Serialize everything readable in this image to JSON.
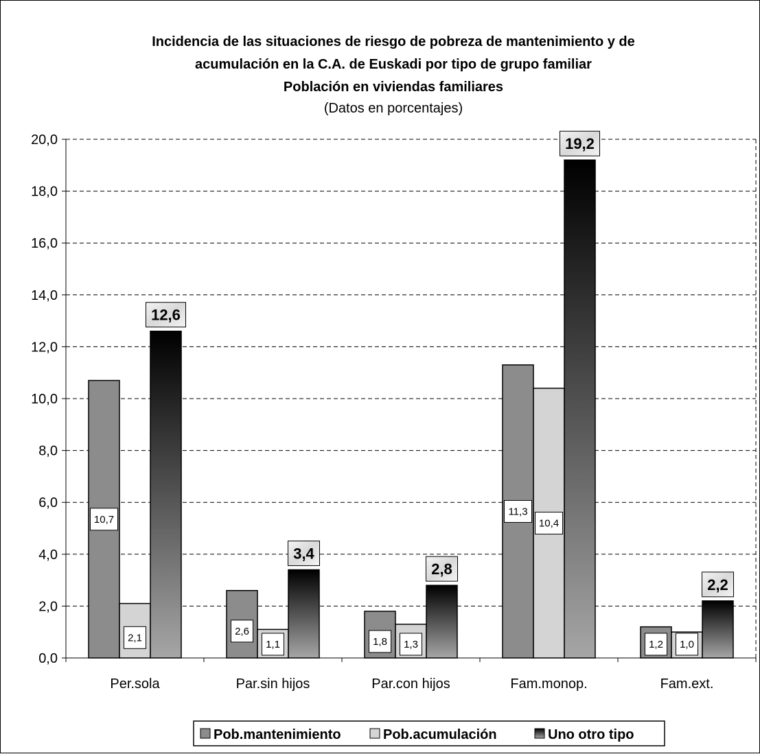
{
  "chart_data": {
    "type": "bar",
    "title_lines": [
      "Incidencia de las situaciones de riesgo de pobreza de mantenimiento y de",
      "acumulación en la C.A. de Euskadi por tipo de grupo familiar",
      "Población en viviendas familiares"
    ],
    "subtitle": "(Datos en porcentajes)",
    "categories": [
      "Per.sola",
      "Par.sin hijos",
      "Par.con hijos",
      "Fam.monop.",
      "Fam.ext."
    ],
    "series": [
      {
        "name": "Pob.mantenimiento",
        "values": [
          10.7,
          2.6,
          1.8,
          11.3,
          1.2
        ],
        "labels": [
          "10,7",
          "2,6",
          "1,8",
          "11,3",
          "1,2"
        ],
        "color": "#8c8c8c"
      },
      {
        "name": "Pob.acumulación",
        "values": [
          2.1,
          1.1,
          1.3,
          10.4,
          1.0
        ],
        "labels": [
          "2,1",
          "1,1",
          "1,3",
          "10,4",
          "1,0"
        ],
        "color": "#d4d4d4"
      },
      {
        "name": "Uno otro tipo",
        "values": [
          12.6,
          3.4,
          2.8,
          19.2,
          2.2
        ],
        "labels": [
          "12,6",
          "3,4",
          "2,8",
          "19,2",
          "2,2"
        ],
        "color": "#333333"
      }
    ],
    "ylim": [
      0,
      20
    ],
    "yticks": [
      0,
      2,
      4,
      6,
      8,
      10,
      12,
      14,
      16,
      18,
      20
    ],
    "ytick_labels": [
      "0,0",
      "2,0",
      "4,0",
      "6,0",
      "8,0",
      "10,0",
      "12,0",
      "14,0",
      "16,0",
      "18,0",
      "20,0"
    ],
    "grid": true,
    "legend_position": "bottom"
  }
}
